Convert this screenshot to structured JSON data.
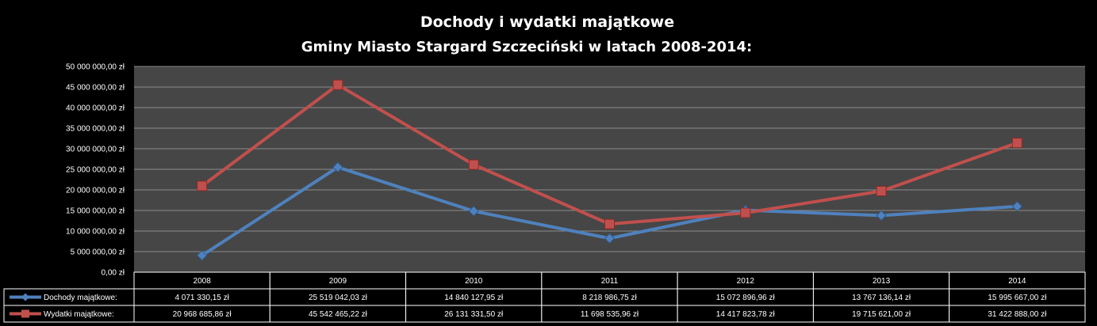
{
  "chart_data": {
    "type": "line",
    "title": "Dochody i wydatki majątkowe",
    "subtitle": "Gminy Miasto  Stargard Szczeciński w latach 2008-2014:",
    "categories": [
      "2008",
      "2009",
      "2010",
      "2011",
      "2012",
      "2013",
      "2014"
    ],
    "ylim": [
      0,
      50000000
    ],
    "y_ticks": [
      "0,00 zł",
      "5 000 000,00 zł",
      "10 000 000,00 zł",
      "15 000 000,00 zł",
      "20 000 000,00 zł",
      "25 000 000,00 zł",
      "30 000 000,00 zł",
      "35 000 000,00 zł",
      "40 000 000,00 zł",
      "45 000 000,00 zł",
      "50 000 000,00 zł"
    ],
    "grid": true,
    "legend": "data-table",
    "series": [
      {
        "name": "Dochody majątkowe:",
        "color": "#4f81bd",
        "marker": "diamond",
        "values": [
          4071330.15,
          25519042.03,
          14840127.95,
          8218986.75,
          15072896.96,
          13767136.14,
          15995667.0
        ],
        "labels": [
          "4 071 330,15 zł",
          "25 519 042,03 zł",
          "14 840 127,95 zł",
          "8 218 986,75 zł",
          "15 072 896,96 zł",
          "13 767 136,14 zł",
          "15 995 667,00 zł"
        ]
      },
      {
        "name": "Wydatki majątkowe:",
        "color": "#c0504d",
        "marker": "square",
        "values": [
          20968685.86,
          45542465.22,
          26131331.5,
          11698535.96,
          14417823.78,
          19715621.0,
          31422888.0
        ],
        "labels": [
          "20 968 685,86 zł",
          "45 542 465,22 zł",
          "26 131 331,50 zł",
          "11 698 535,96 zł",
          "14 417 823,78 zł",
          "19 715 621,00 zł",
          "31 422 888,00 zł"
        ]
      }
    ]
  }
}
